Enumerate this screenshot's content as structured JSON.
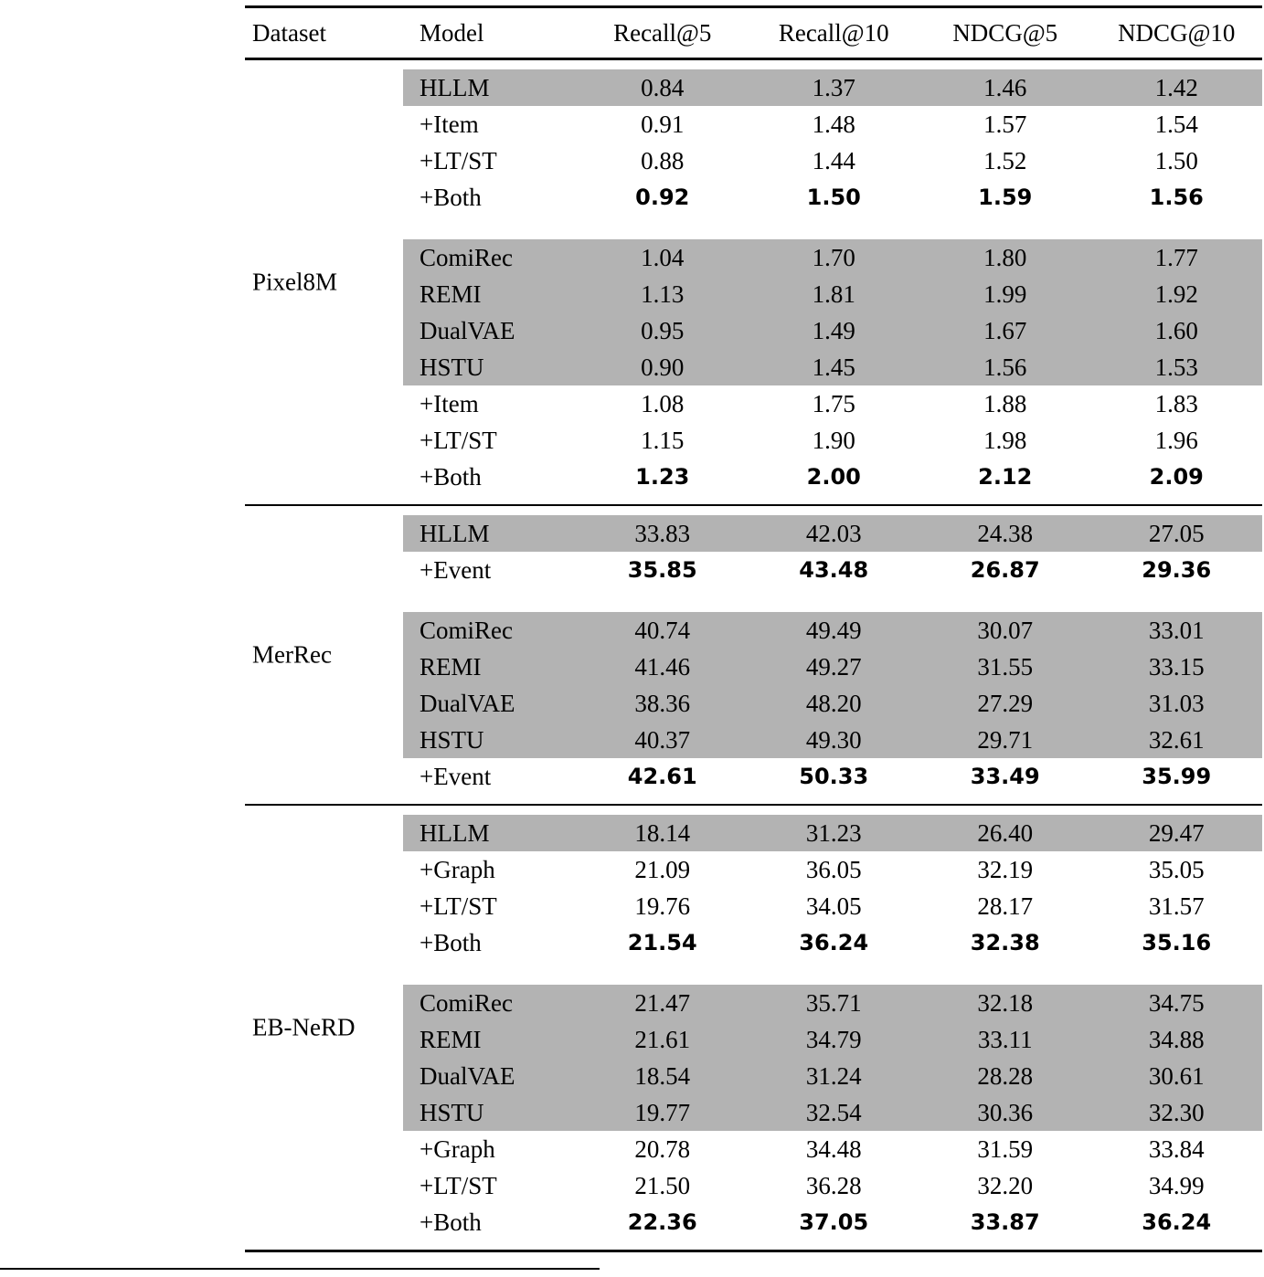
{
  "colors": {
    "shade": "#b3b3b3",
    "rule": "#000000",
    "background": "#ffffff"
  },
  "table": {
    "columns": [
      "Dataset",
      "Model",
      "Recall@5",
      "Recall@10",
      "NDCG@5",
      "NDCG@10"
    ],
    "groups": [
      {
        "dataset": "Pixel8M",
        "rows": [
          {
            "model": "HLLM",
            "values": [
              "0.84",
              "1.37",
              "1.46",
              "1.42"
            ],
            "shaded": true,
            "bold": false,
            "gap_before": false
          },
          {
            "model": "+Item",
            "values": [
              "0.91",
              "1.48",
              "1.57",
              "1.54"
            ],
            "shaded": false,
            "bold": false,
            "gap_before": false
          },
          {
            "model": "+LT/ST",
            "values": [
              "0.88",
              "1.44",
              "1.52",
              "1.50"
            ],
            "shaded": false,
            "bold": false,
            "gap_before": false
          },
          {
            "model": "+Both",
            "values": [
              "0.92",
              "1.50",
              "1.59",
              "1.56"
            ],
            "shaded": false,
            "bold": true,
            "gap_before": false
          },
          {
            "model": "ComiRec",
            "values": [
              "1.04",
              "1.70",
              "1.80",
              "1.77"
            ],
            "shaded": true,
            "bold": false,
            "gap_before": true
          },
          {
            "model": "REMI",
            "values": [
              "1.13",
              "1.81",
              "1.99",
              "1.92"
            ],
            "shaded": true,
            "bold": false,
            "gap_before": false
          },
          {
            "model": "DualVAE",
            "values": [
              "0.95",
              "1.49",
              "1.67",
              "1.60"
            ],
            "shaded": true,
            "bold": false,
            "gap_before": false
          },
          {
            "model": "HSTU",
            "values": [
              "0.90",
              "1.45",
              "1.56",
              "1.53"
            ],
            "shaded": true,
            "bold": false,
            "gap_before": false
          },
          {
            "model": "+Item",
            "values": [
              "1.08",
              "1.75",
              "1.88",
              "1.83"
            ],
            "shaded": false,
            "bold": false,
            "gap_before": false
          },
          {
            "model": "+LT/ST",
            "values": [
              "1.15",
              "1.90",
              "1.98",
              "1.96"
            ],
            "shaded": false,
            "bold": false,
            "gap_before": false
          },
          {
            "model": "+Both",
            "values": [
              "1.23",
              "2.00",
              "2.12",
              "2.09"
            ],
            "shaded": false,
            "bold": true,
            "gap_before": false
          }
        ]
      },
      {
        "dataset": "MerRec",
        "rows": [
          {
            "model": "HLLM",
            "values": [
              "33.83",
              "42.03",
              "24.38",
              "27.05"
            ],
            "shaded": true,
            "bold": false,
            "gap_before": false
          },
          {
            "model": "+Event",
            "values": [
              "35.85",
              "43.48",
              "26.87",
              "29.36"
            ],
            "shaded": false,
            "bold": true,
            "gap_before": false
          },
          {
            "model": "ComiRec",
            "values": [
              "40.74",
              "49.49",
              "30.07",
              "33.01"
            ],
            "shaded": true,
            "bold": false,
            "gap_before": true
          },
          {
            "model": "REMI",
            "values": [
              "41.46",
              "49.27",
              "31.55",
              "33.15"
            ],
            "shaded": true,
            "bold": false,
            "gap_before": false
          },
          {
            "model": "DualVAE",
            "values": [
              "38.36",
              "48.20",
              "27.29",
              "31.03"
            ],
            "shaded": true,
            "bold": false,
            "gap_before": false
          },
          {
            "model": "HSTU",
            "values": [
              "40.37",
              "49.30",
              "29.71",
              "32.61"
            ],
            "shaded": true,
            "bold": false,
            "gap_before": false
          },
          {
            "model": "+Event",
            "values": [
              "42.61",
              "50.33",
              "33.49",
              "35.99"
            ],
            "shaded": false,
            "bold": true,
            "gap_before": false
          }
        ]
      },
      {
        "dataset": "EB-NeRD",
        "rows": [
          {
            "model": "HLLM",
            "values": [
              "18.14",
              "31.23",
              "26.40",
              "29.47"
            ],
            "shaded": true,
            "bold": false,
            "gap_before": false
          },
          {
            "model": "+Graph",
            "values": [
              "21.09",
              "36.05",
              "32.19",
              "35.05"
            ],
            "shaded": false,
            "bold": false,
            "gap_before": false
          },
          {
            "model": "+LT/ST",
            "values": [
              "19.76",
              "34.05",
              "28.17",
              "31.57"
            ],
            "shaded": false,
            "bold": false,
            "gap_before": false
          },
          {
            "model": "+Both",
            "values": [
              "21.54",
              "36.24",
              "32.38",
              "35.16"
            ],
            "shaded": false,
            "bold": true,
            "gap_before": false
          },
          {
            "model": "ComiRec",
            "values": [
              "21.47",
              "35.71",
              "32.18",
              "34.75"
            ],
            "shaded": true,
            "bold": false,
            "gap_before": true
          },
          {
            "model": "REMI",
            "values": [
              "21.61",
              "34.79",
              "33.11",
              "34.88"
            ],
            "shaded": true,
            "bold": false,
            "gap_before": false
          },
          {
            "model": "DualVAE",
            "values": [
              "18.54",
              "31.24",
              "28.28",
              "30.61"
            ],
            "shaded": true,
            "bold": false,
            "gap_before": false
          },
          {
            "model": "HSTU",
            "values": [
              "19.77",
              "32.54",
              "30.36",
              "32.30"
            ],
            "shaded": true,
            "bold": false,
            "gap_before": false
          },
          {
            "model": "+Graph",
            "values": [
              "20.78",
              "34.48",
              "31.59",
              "33.84"
            ],
            "shaded": false,
            "bold": false,
            "gap_before": false
          },
          {
            "model": "+LT/ST",
            "values": [
              "21.50",
              "36.28",
              "32.20",
              "34.99"
            ],
            "shaded": false,
            "bold": false,
            "gap_before": false
          },
          {
            "model": "+Both",
            "values": [
              "22.36",
              "37.05",
              "33.87",
              "36.24"
            ],
            "shaded": false,
            "bold": true,
            "gap_before": false
          }
        ]
      }
    ]
  }
}
